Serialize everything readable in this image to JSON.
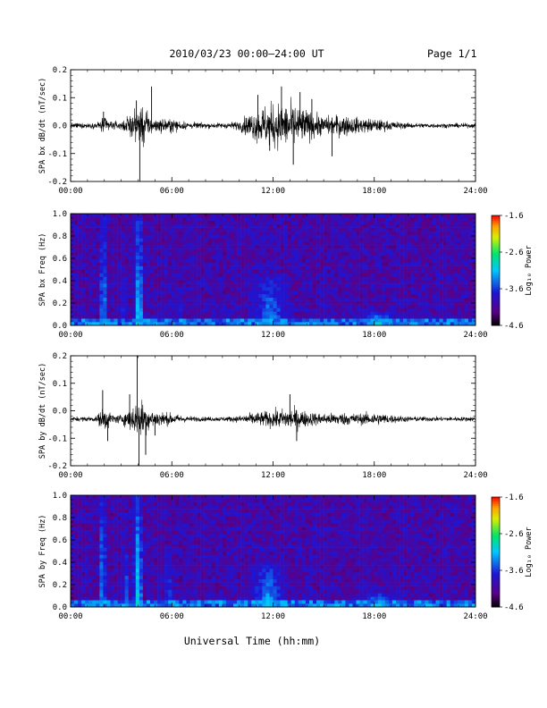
{
  "header": {
    "title": "2010/03/23  00:00–24:00 UT",
    "page": "Page 1/1"
  },
  "xlabel": "Universal Time (hh:mm)",
  "time_ticks": [
    "00:00",
    "06:00",
    "12:00",
    "18:00",
    "24:00"
  ],
  "colorbar": {
    "label": "Log₁₀ Power",
    "ticks": [
      "-1.6",
      "-2.6",
      "-3.6",
      "-4.6"
    ]
  },
  "chart_data": [
    {
      "type": "line",
      "ylabel": "SPA bx dB/dt (nT/sec)",
      "x_unit": "hours UT",
      "xlim": [
        0,
        24
      ],
      "ylim": [
        -0.2,
        0.2
      ],
      "yticks": [
        "-0.2",
        "-0.1",
        "0.0",
        "0.1",
        "0.2"
      ],
      "baseline": 0.0,
      "envelope": {
        "x": [
          0,
          1.5,
          2.0,
          2.5,
          3.0,
          3.5,
          4.0,
          4.3,
          4.6,
          5.0,
          6.0,
          7.0,
          8.0,
          9.0,
          10.0,
          10.5,
          11.0,
          11.5,
          12.0,
          12.5,
          13.0,
          13.5,
          14.0,
          15.0,
          16.0,
          17.0,
          18.0,
          19.0,
          20.0,
          22.0,
          24.0
        ],
        "amplitude": [
          0.012,
          0.012,
          0.04,
          0.02,
          0.015,
          0.05,
          0.07,
          0.1,
          0.05,
          0.03,
          0.03,
          0.015,
          0.012,
          0.012,
          0.02,
          0.05,
          0.07,
          0.09,
          0.1,
          0.1,
          0.1,
          0.09,
          0.07,
          0.04,
          0.05,
          0.035,
          0.03,
          0.02,
          0.012,
          0.01,
          0.01
        ]
      },
      "peaks": [
        {
          "x": 1.95,
          "y": 0.05
        },
        {
          "x": 3.9,
          "y": 0.09
        },
        {
          "x": 4.1,
          "y": -0.2
        },
        {
          "x": 4.8,
          "y": 0.14
        },
        {
          "x": 11.1,
          "y": 0.11
        },
        {
          "x": 12.5,
          "y": 0.14
        },
        {
          "x": 13.2,
          "y": -0.14
        },
        {
          "x": 13.6,
          "y": 0.12
        },
        {
          "x": 14.3,
          "y": 0.095
        },
        {
          "x": 15.5,
          "y": -0.11
        },
        {
          "x": 11.8,
          "y": -0.09
        }
      ]
    },
    {
      "type": "heatmap",
      "ylabel": "SPA bx Freq (Hz)",
      "x_unit": "hours UT",
      "xlim": [
        0,
        24
      ],
      "ylim": [
        0.0,
        1.0
      ],
      "yticks": [
        "0.0",
        "0.2",
        "0.4",
        "0.6",
        "0.8",
        "1.0"
      ],
      "colorbar_range": [
        -4.6,
        -1.6
      ],
      "colormap": "rainbow",
      "background_level": -4.0,
      "enhancements": [
        {
          "x": 1.95,
          "width_hours": 0.3,
          "f_max": 1.0,
          "level": -3.0
        },
        {
          "x": 4.05,
          "width_hours": 0.45,
          "f_max": 1.0,
          "level": -2.8
        },
        {
          "x": 3.2,
          "width_hours": 0.2,
          "f_max": 0.4,
          "level": -3.4
        },
        {
          "x": 6.5,
          "width_hours": 0.2,
          "f_max": 0.35,
          "level": -3.5
        },
        {
          "x": 11.8,
          "width_hours": 2.5,
          "f_max": 0.45,
          "level": -3.2
        },
        {
          "x": 18.2,
          "width_hours": 2.0,
          "f_max": 0.12,
          "level": -2.8
        }
      ]
    },
    {
      "type": "line",
      "ylabel": "SPA by dB/dt (nT/sec)",
      "x_unit": "hours UT",
      "xlim": [
        0,
        24
      ],
      "ylim": [
        -0.2,
        0.2
      ],
      "yticks": [
        "-0.2",
        "-0.1",
        "0.0",
        "0.1",
        "0.2"
      ],
      "baseline": -0.03,
      "envelope": {
        "x": [
          0,
          1.5,
          2.0,
          2.5,
          3.0,
          3.5,
          4.0,
          4.3,
          4.6,
          5.0,
          6.0,
          7.0,
          8.0,
          9.0,
          10.0,
          10.5,
          11.0,
          11.5,
          12.0,
          12.5,
          13.0,
          13.5,
          14.0,
          15.0,
          16.0,
          17.0,
          18.0,
          19.0,
          20.0,
          22.0,
          24.0
        ],
        "amplitude": [
          0.01,
          0.012,
          0.06,
          0.02,
          0.02,
          0.05,
          0.08,
          0.09,
          0.05,
          0.04,
          0.025,
          0.012,
          0.01,
          0.01,
          0.015,
          0.025,
          0.03,
          0.035,
          0.04,
          0.045,
          0.05,
          0.045,
          0.035,
          0.025,
          0.03,
          0.025,
          0.03,
          0.02,
          0.012,
          0.01,
          0.01
        ]
      },
      "peaks": [
        {
          "x": 1.9,
          "y": 0.075
        },
        {
          "x": 2.2,
          "y": -0.11
        },
        {
          "x": 3.5,
          "y": 0.06
        },
        {
          "x": 3.95,
          "y": 0.2
        },
        {
          "x": 4.05,
          "y": -0.22
        },
        {
          "x": 4.45,
          "y": -0.16
        },
        {
          "x": 5.0,
          "y": -0.09
        },
        {
          "x": 13.4,
          "y": -0.11
        },
        {
          "x": 13.0,
          "y": 0.06
        }
      ]
    },
    {
      "type": "heatmap",
      "ylabel": "SPA by Freq (Hz)",
      "x_unit": "hours UT",
      "xlim": [
        0,
        24
      ],
      "ylim": [
        0.0,
        1.0
      ],
      "yticks": [
        "0.0",
        "0.2",
        "0.4",
        "0.6",
        "0.8",
        "1.0"
      ],
      "colorbar_range": [
        -4.6,
        -1.6
      ],
      "colormap": "rainbow",
      "background_level": -4.0,
      "enhancements": [
        {
          "x": 1.9,
          "width_hours": 0.3,
          "f_max": 1.0,
          "level": -3.0
        },
        {
          "x": 4.0,
          "width_hours": 0.5,
          "f_max": 1.0,
          "level": -2.8
        },
        {
          "x": 3.3,
          "width_hours": 0.25,
          "f_max": 0.5,
          "level": -3.3
        },
        {
          "x": 5.8,
          "width_hours": 0.3,
          "f_max": 0.5,
          "level": -3.4
        },
        {
          "x": 11.7,
          "width_hours": 2.3,
          "f_max": 0.4,
          "level": -3.1
        },
        {
          "x": 18.3,
          "width_hours": 2.0,
          "f_max": 0.12,
          "level": -2.8
        }
      ]
    }
  ]
}
